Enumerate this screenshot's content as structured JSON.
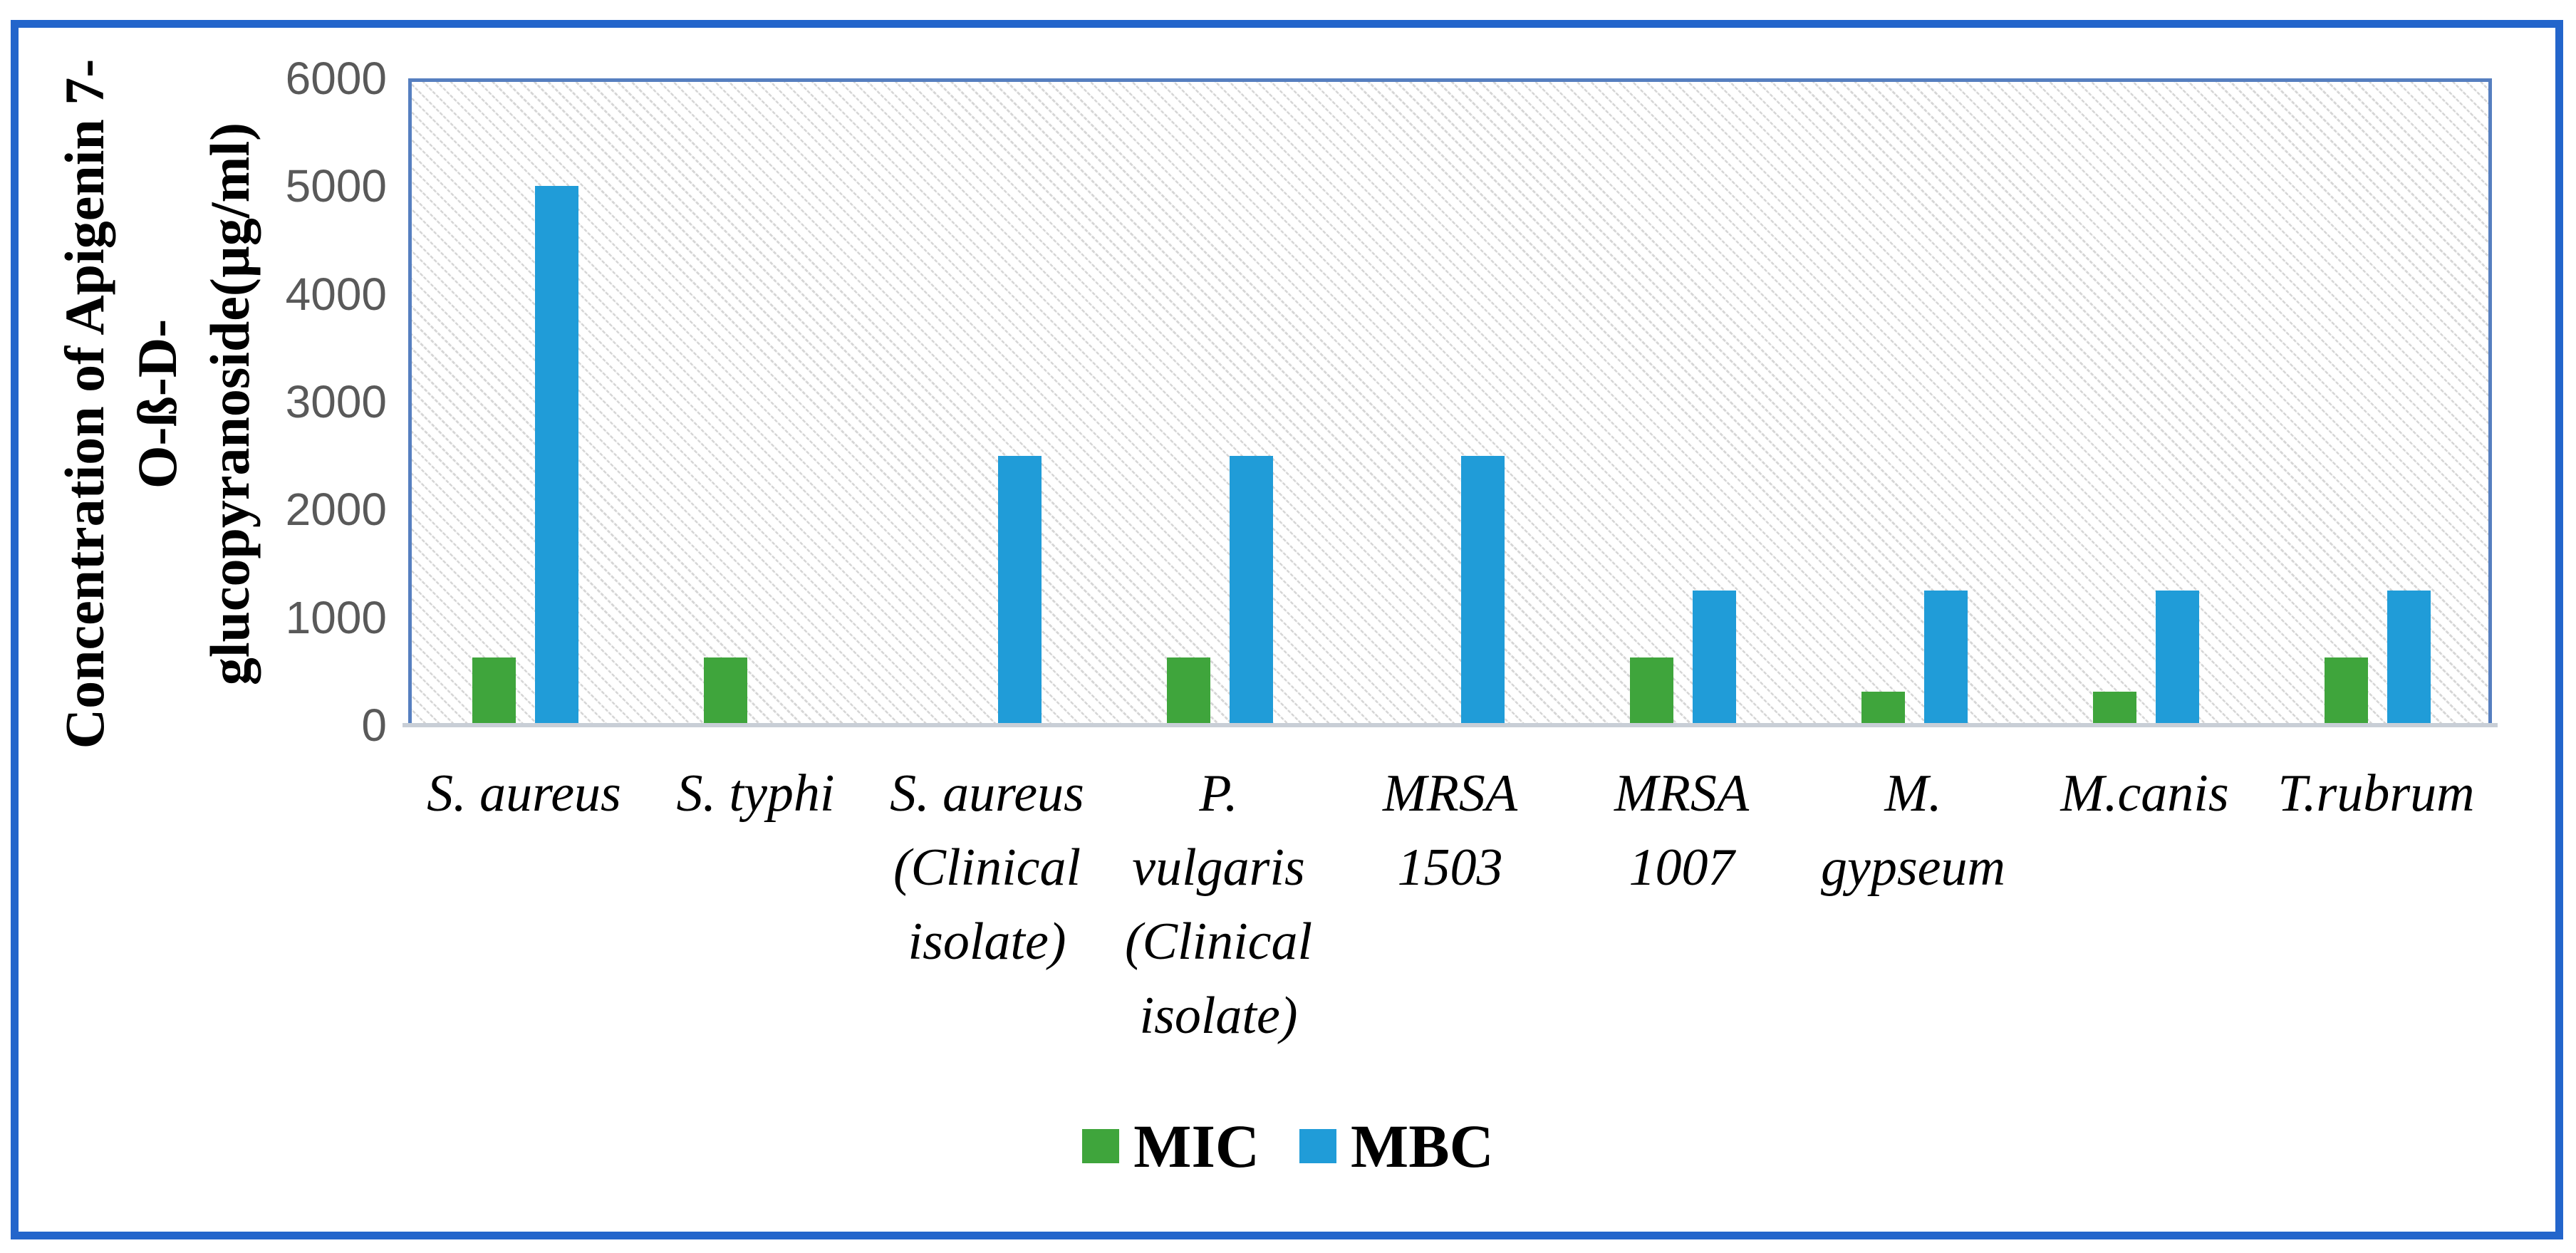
{
  "figure": {
    "frame_border_color": "#2365cb",
    "plot_border_color": "#567fc0",
    "gridline_color": "#d9d9d9",
    "axis_line_color": "#c8ced6",
    "tick_text_color": "#595959",
    "background_color": "#ffffff",
    "hatch_fill": "light-diagonal-pattern"
  },
  "y_axis": {
    "title": "Concentration of Apigenin 7-O-ß-D-glucopyranoside(µg/ml)",
    "title_lines": [
      "Concentration of Apigenin 7-O-ß-D-",
      "glucopyranoside(µg/ml)"
    ],
    "ticks": [
      6000,
      5000,
      4000,
      3000,
      2000,
      1000,
      0
    ],
    "min": 0,
    "max": 6000
  },
  "chart_data": {
    "type": "bar",
    "title": "",
    "xlabel": "",
    "ylabel": "Concentration of Apigenin 7-O-ß-D-glucopyranoside(µg/ml)",
    "ylim": [
      0,
      6000
    ],
    "grid": true,
    "legend_position": "bottom",
    "categories": [
      "S. aureus",
      "S. typhi",
      "S. aureus (Clinical isolate)",
      "P. vulgaris (Clinical isolate)",
      "MRSA 1503",
      "MRSA 1007",
      "M. gypseum",
      "M.canis",
      "T.rubrum"
    ],
    "category_label_lines": [
      [
        "S. aureus"
      ],
      [
        "S. typhi"
      ],
      [
        "S. aureus",
        "(Clinical",
        "isolate)"
      ],
      [
        "P.",
        "vulgaris",
        "(Clinical",
        "isolate)"
      ],
      [
        "MRSA",
        "1503"
      ],
      [
        "MRSA",
        "1007"
      ],
      [
        "M.",
        "gypseum"
      ],
      [
        "M.canis"
      ],
      [
        "T.rubrum"
      ]
    ],
    "series": [
      {
        "name": "MIC",
        "color": "#3fa53c",
        "values": [
          625,
          625,
          19.5,
          625,
          19.5,
          625,
          312.5,
          312.5,
          625
        ]
      },
      {
        "name": "MBC",
        "color": "#209cd8",
        "values": [
          5000,
          0,
          2500,
          2500,
          2500,
          1250,
          1250,
          1250,
          1250
        ]
      }
    ]
  }
}
